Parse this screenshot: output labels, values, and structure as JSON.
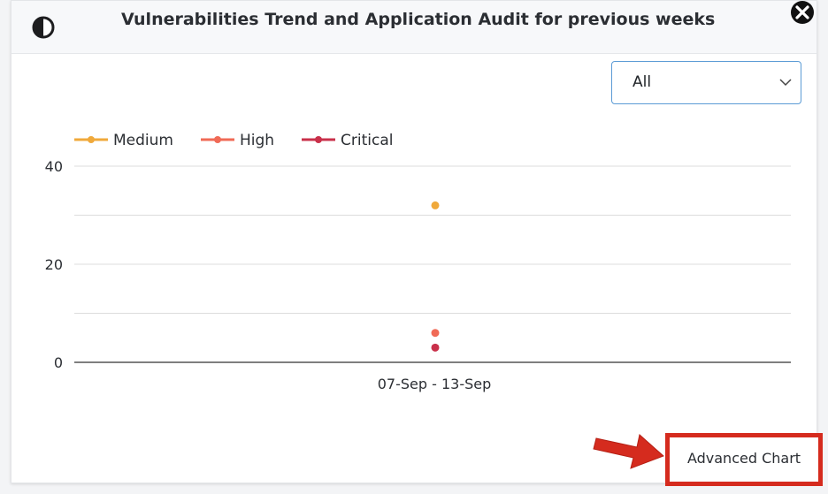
{
  "dialog": {
    "title": "Vulnerabilities Trend and Application Audit for previous weeks",
    "header_icon": "contrast-icon",
    "close_icon": "close-icon"
  },
  "filter": {
    "selected": "All"
  },
  "chart_data": {
    "type": "line",
    "categories": [
      "07-Sep - 13-Sep"
    ],
    "series": [
      {
        "name": "Medium",
        "values": [
          32
        ],
        "color": "#f0a93b"
      },
      {
        "name": "High",
        "values": [
          6
        ],
        "color": "#f06a56"
      },
      {
        "name": "Critical",
        "values": [
          3
        ],
        "color": "#c9304a"
      }
    ],
    "ylim": [
      0,
      40
    ],
    "yticks": [
      "0",
      "20",
      "40"
    ],
    "grid": true,
    "legend": "top-left"
  },
  "actions": {
    "advanced_chart_label": "Advanced Chart"
  },
  "colors": {
    "highlight_red": "#d52b1e",
    "select_border": "#5b9bd5"
  }
}
